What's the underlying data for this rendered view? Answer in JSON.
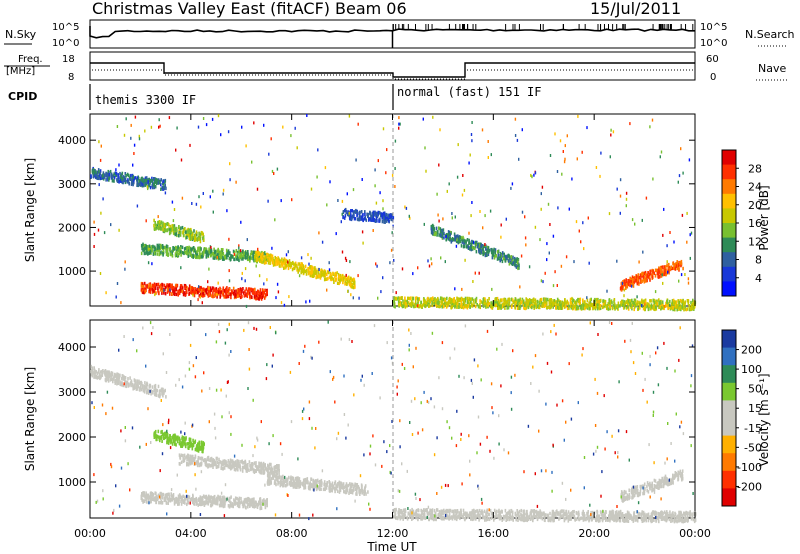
{
  "header": {
    "title": "Christmas Valley East (fitACF)",
    "beam": "Beam 06",
    "date": "15/Jul/2011"
  },
  "strip_sky": {
    "left_label": "N.Sky",
    "right_label": "N.Search",
    "left_ticks": [
      "10^5",
      "10^0"
    ],
    "right_ticks": [
      "10^5",
      "10^0"
    ]
  },
  "strip_freq": {
    "left_label_1": "Freq.",
    "left_label_2": "[MHz]",
    "right_label": "Nave",
    "left_ticks": [
      "18",
      "8"
    ],
    "right_ticks": [
      "60",
      "0"
    ]
  },
  "cpid": {
    "label": "CPID",
    "segments": [
      {
        "start_hour": 0,
        "end_hour": 12,
        "text": "themis 3300 IF"
      },
      {
        "start_hour": 12,
        "end_hour": 24,
        "text": "normal (fast) 151 IF"
      }
    ]
  },
  "axes": {
    "ylabel": "Slant Range [km]",
    "xlabel": "Time UT",
    "xticks": [
      "00:00",
      "04:00",
      "08:00",
      "12:00",
      "16:00",
      "20:00",
      "00:00"
    ],
    "yticks": [
      "1000",
      "2000",
      "3000",
      "4000"
    ],
    "yrange_km": [
      200,
      4600
    ],
    "xrange_hours": [
      0,
      24
    ]
  },
  "colorbar_power": {
    "label": "Power [dB]",
    "ticks": [
      "28",
      "24",
      "20",
      "16",
      "12",
      "8",
      "4"
    ],
    "colors": [
      "#e00000",
      "#ff3000",
      "#ff7a00",
      "#ffc000",
      "#c8c800",
      "#78c030",
      "#2e8b57",
      "#2f60a0",
      "#1838d8",
      "#0010ff"
    ]
  },
  "colorbar_velocity": {
    "label": "Velocity [m s⁻¹]",
    "ticks": [
      "200",
      "100",
      "50",
      "15",
      "-15",
      "-50",
      "-100",
      "-200"
    ],
    "colors": [
      "#1a3aa0",
      "#3070c0",
      "#2e8b57",
      "#7ac830",
      "#c8c8c0",
      "#c8c8c0",
      "#ffb000",
      "#ff7a00",
      "#ff3000",
      "#e00000"
    ]
  },
  "chart_data": {
    "type": "heatmap",
    "title": "Christmas Valley East (fitACF)",
    "xlabel": "Time UT",
    "ylabel": "Slant Range [km]",
    "xlim": [
      0,
      24
    ],
    "ylim": [
      200,
      4600
    ],
    "panels": [
      {
        "name": "Power",
        "colorbar_label": "Power [dB]",
        "colorbar_range": [
          0,
          30
        ],
        "bands": [
          {
            "t0": 0.0,
            "t1": 3.0,
            "r0": 3300,
            "r1": 3000,
            "value": 8
          },
          {
            "t0": 2.5,
            "t1": 4.5,
            "r0": 2100,
            "r1": 1800,
            "value": 14
          },
          {
            "t0": 2.0,
            "t1": 7.0,
            "r0": 1550,
            "r1": 1350,
            "value": 12
          },
          {
            "t0": 2.0,
            "t1": 7.0,
            "r0": 650,
            "r1": 500,
            "value": 26
          },
          {
            "t0": 6.5,
            "t1": 10.5,
            "r0": 1400,
            "r1": 750,
            "value": 18
          },
          {
            "t0": 10.0,
            "t1": 12.0,
            "r0": 2350,
            "r1": 2250,
            "value": 6
          },
          {
            "t0": 12.0,
            "t1": 24.0,
            "r0": 320,
            "r1": 260,
            "value": 16
          },
          {
            "t0": 13.5,
            "t1": 17.0,
            "r0": 2000,
            "r1": 1200,
            "value": 10
          },
          {
            "t0": 21.0,
            "t1": 23.5,
            "r0": 700,
            "r1": 1200,
            "value": 24
          }
        ]
      },
      {
        "name": "Velocity",
        "colorbar_label": "Velocity [m s⁻¹]",
        "colorbar_range": [
          -250,
          250
        ],
        "bands": [
          {
            "t0": 0.0,
            "t1": 3.0,
            "r0": 3500,
            "r1": 3000,
            "value": 0
          },
          {
            "t0": 2.5,
            "t1": 4.5,
            "r0": 2100,
            "r1": 1800,
            "value": 60
          },
          {
            "t0": 3.5,
            "t1": 7.5,
            "r0": 1550,
            "r1": 1300,
            "value": 30
          },
          {
            "t0": 2.0,
            "t1": 7.0,
            "r0": 700,
            "r1": 550,
            "value": 30
          },
          {
            "t0": 7.0,
            "t1": 11.0,
            "r0": 1100,
            "r1": 850,
            "value": 0
          },
          {
            "t0": 12.0,
            "t1": 24.0,
            "r0": 320,
            "r1": 260,
            "value": -40
          },
          {
            "t0": 21.0,
            "t1": 23.5,
            "r0": 700,
            "r1": 1200,
            "value": 0
          }
        ]
      }
    ]
  }
}
